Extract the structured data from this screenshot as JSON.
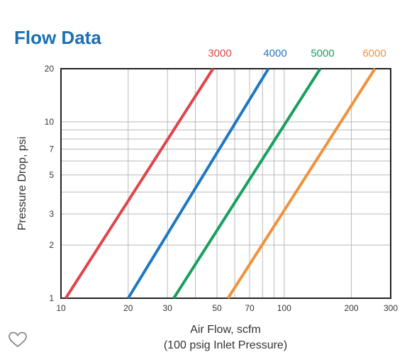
{
  "title": "Flow Data",
  "chart_data": {
    "type": "line",
    "title": "Flow Data",
    "xlabel": "Air Flow, scfm",
    "xlabel2": "(100 psig Inlet Pressure)",
    "ylabel": "Pressure Drop, psi",
    "xscale": "log",
    "yscale": "log",
    "xlim": [
      10,
      300
    ],
    "ylim": [
      1,
      20
    ],
    "xticks": [
      10,
      20,
      30,
      50,
      70,
      100,
      200,
      300
    ],
    "yticks": [
      1,
      2,
      3,
      5,
      7,
      10,
      20
    ],
    "x_minor_grid": [
      40,
      60,
      80,
      90
    ],
    "y_minor_grid": [
      4,
      6,
      8,
      9
    ],
    "grid": true,
    "legend": "top, above plot",
    "series": [
      {
        "name": "3000",
        "color": "#e0454d",
        "points": [
          [
            10.5,
            1
          ],
          [
            48,
            20
          ]
        ]
      },
      {
        "name": "4000",
        "color": "#1f78c1",
        "points": [
          [
            20,
            1
          ],
          [
            85,
            20
          ]
        ]
      },
      {
        "name": "5000",
        "color": "#18a05f",
        "points": [
          [
            32,
            1
          ],
          [
            145,
            20
          ]
        ]
      },
      {
        "name": "6000",
        "color": "#f1923b",
        "points": [
          [
            56,
            1
          ],
          [
            255,
            20
          ]
        ]
      }
    ]
  }
}
